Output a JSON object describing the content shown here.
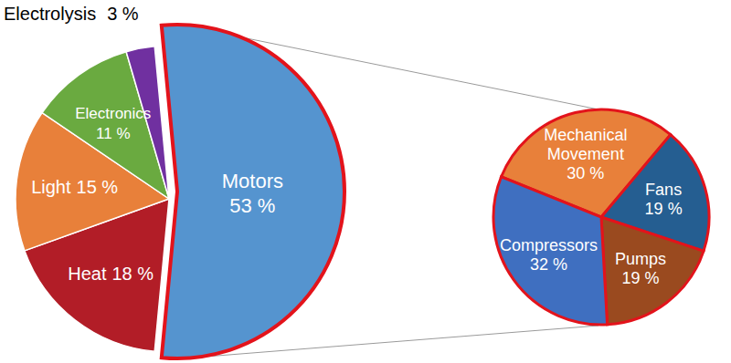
{
  "chart_data": [
    {
      "type": "pie",
      "categories": [
        "Motors",
        "Heat",
        "Light",
        "Electronics",
        "Electrolysis"
      ],
      "values": [
        53,
        18,
        15,
        11,
        3
      ],
      "value_labels": [
        "53 %",
        "18 %",
        "15 %",
        "11 %",
        "3 %"
      ],
      "colors": [
        "#5594cf",
        "#b21d27",
        "#e8803a",
        "#6aaa40",
        "#7030a0"
      ],
      "data_labels": true
    },
    {
      "type": "pie",
      "categories": [
        "Mechanical Movement",
        "Fans",
        "Pumps",
        "Compressors"
      ],
      "values": [
        30,
        19,
        19,
        32
      ],
      "value_labels": [
        "30 %",
        "19 %",
        "19 %",
        "32 %"
      ],
      "colors": [
        "#e8803a",
        "#255e91",
        "#9a4a1f",
        "#3f6fc0"
      ],
      "data_labels": true
    }
  ]
}
